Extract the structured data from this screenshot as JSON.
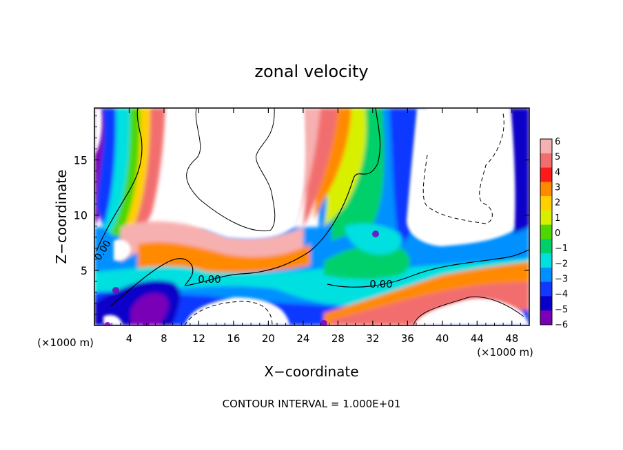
{
  "chart_data": {
    "type": "heatmap",
    "title": "zonal velocity",
    "xlabel": "X−coordinate",
    "ylabel": "Z−coordinate",
    "x_unit_left": "(×1000 m)",
    "x_unit_right": "(×1000 m)",
    "footer": "CONTOUR INTERVAL = 1.000E+01",
    "xlim": [
      0,
      50
    ],
    "ylim": [
      0,
      19.7
    ],
    "x_ticks": [
      "4",
      "8",
      "12",
      "16",
      "20",
      "24",
      "28",
      "32",
      "36",
      "40",
      "44",
      "48"
    ],
    "y_ticks": [
      "5",
      "10",
      "15"
    ],
    "colorbar": {
      "levels": [
        "6",
        "5",
        "4",
        "3",
        "2",
        "1",
        "0",
        "−1",
        "−2",
        "−3",
        "−4",
        "−5",
        "−6"
      ],
      "colors": [
        "#f7b0b0",
        "#f26e6e",
        "#ff1a1a",
        "#ff8a00",
        "#ffd000",
        "#d8f000",
        "#4ed700",
        "#00d06a",
        "#00e0e0",
        "#0090ff",
        "#1038ff",
        "#0800c8",
        "#7a00b8"
      ]
    },
    "contour_labels": [
      "0.00",
      "0.00",
      "0.00"
    ]
  }
}
